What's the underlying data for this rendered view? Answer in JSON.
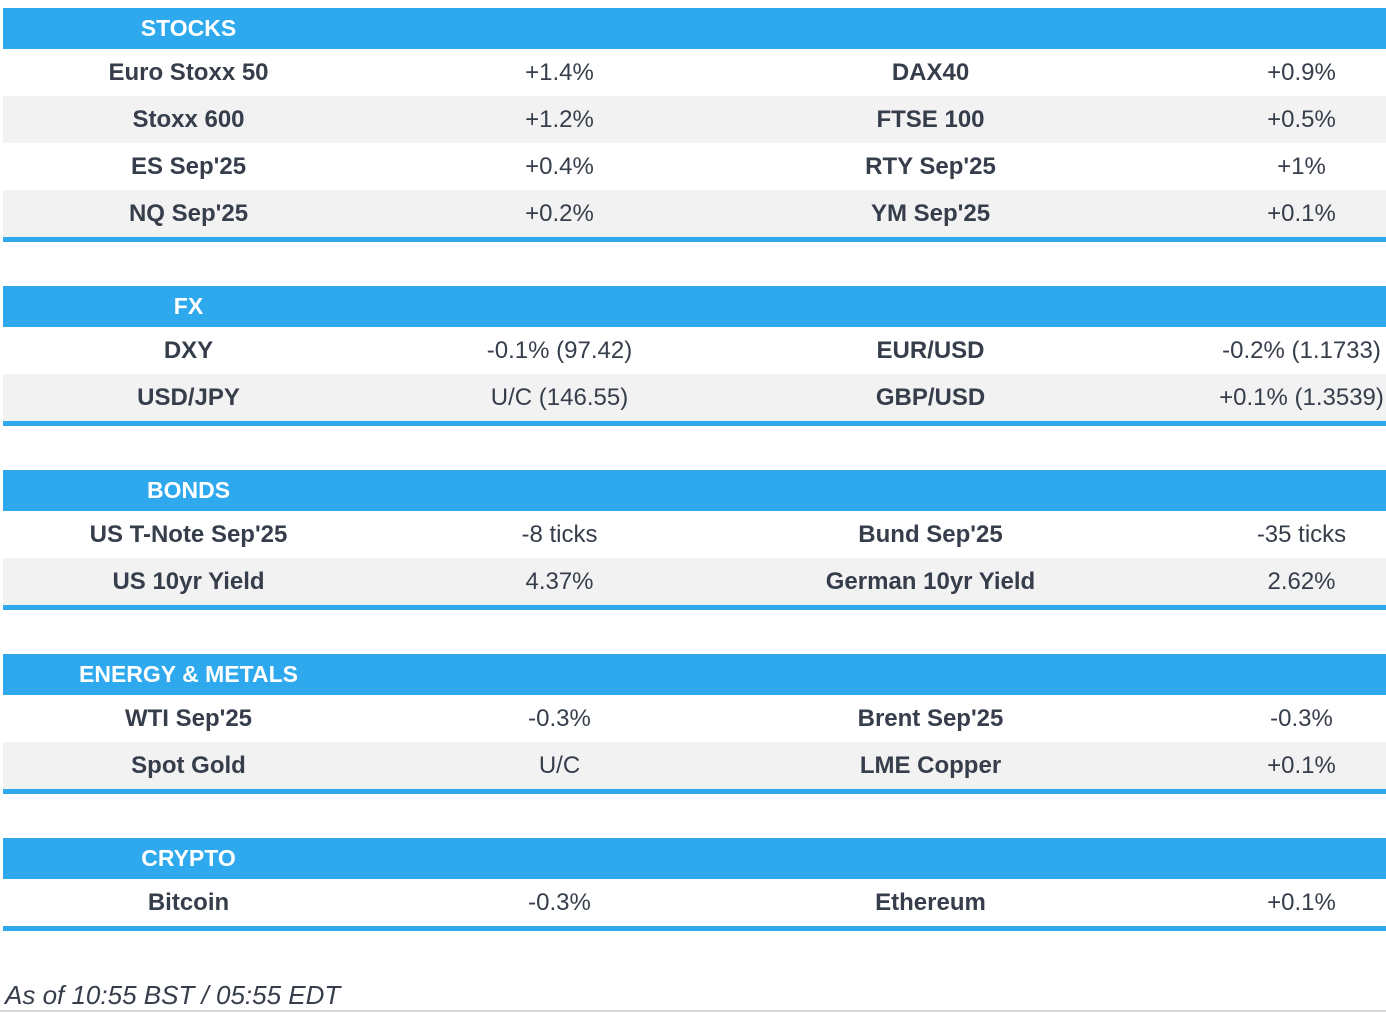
{
  "accent_color": "#2FA9EE",
  "alt_row_color": "#F2F2F2",
  "text_color": "#363D4B",
  "sections": [
    {
      "title": "STOCKS",
      "rows": [
        {
          "l_label": "Euro Stoxx 50",
          "l_value": "+1.4%",
          "r_label": "DAX40",
          "r_value": "+0.9%"
        },
        {
          "l_label": "Stoxx 600",
          "l_value": "+1.2%",
          "r_label": "FTSE 100",
          "r_value": "+0.5%"
        },
        {
          "l_label": "ES Sep'25",
          "l_value": "+0.4%",
          "r_label": "RTY Sep'25",
          "r_value": "+1%"
        },
        {
          "l_label": "NQ Sep'25",
          "l_value": "+0.2%",
          "r_label": "YM Sep'25",
          "r_value": "+0.1%"
        }
      ]
    },
    {
      "title": "FX",
      "rows": [
        {
          "l_label": "DXY",
          "l_value": "-0.1% (97.42)",
          "r_label": "EUR/USD",
          "r_value": "-0.2% (1.1733)"
        },
        {
          "l_label": "USD/JPY",
          "l_value": "U/C (146.55)",
          "r_label": "GBP/USD",
          "r_value": "+0.1% (1.3539)"
        }
      ]
    },
    {
      "title": "BONDS",
      "rows": [
        {
          "l_label": "US T-Note Sep'25",
          "l_value": "-8 ticks",
          "r_label": "Bund Sep'25",
          "r_value": "-35 ticks"
        },
        {
          "l_label": "US 10yr Yield",
          "l_value": "4.37%",
          "r_label": "German 10yr Yield",
          "r_value": "2.62%"
        }
      ]
    },
    {
      "title": "ENERGY & METALS",
      "rows": [
        {
          "l_label": "WTI Sep'25",
          "l_value": "-0.3%",
          "r_label": "Brent Sep'25",
          "r_value": "-0.3%"
        },
        {
          "l_label": "Spot Gold",
          "l_value": "U/C",
          "r_label": "LME Copper",
          "r_value": "+0.1%"
        }
      ]
    },
    {
      "title": "CRYPTO",
      "rows": [
        {
          "l_label": "Bitcoin",
          "l_value": "-0.3%",
          "r_label": "Ethereum",
          "r_value": "+0.1%"
        }
      ]
    }
  ],
  "footer": {
    "as_of": "As of 10:55 BST / 05:55 EDT"
  }
}
